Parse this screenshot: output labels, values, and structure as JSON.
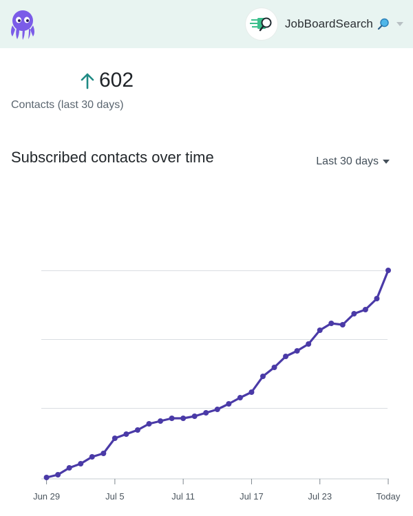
{
  "header": {
    "account_name": "JobBoardSearch",
    "accent": "#e8f4f1"
  },
  "stat": {
    "value": "602",
    "label": "Contacts (last 30 days)",
    "arrow_color": "#1f8a84"
  },
  "chart_section": {
    "title": "Subscribed contacts over time",
    "range_label": "Last 30 days"
  },
  "chart_data": {
    "type": "line",
    "title": "Subscribed contacts over time",
    "xlabel": "",
    "ylabel": "",
    "x_ticks": [
      "Jun 29",
      "Jul 5",
      "Jul 11",
      "Jul 17",
      "Jul 23",
      "Today"
    ],
    "x": [
      "Jun 29",
      "Jun 30",
      "Jul 1",
      "Jul 2",
      "Jul 3",
      "Jul 4",
      "Jul 5",
      "Jul 6",
      "Jul 7",
      "Jul 8",
      "Jul 9",
      "Jul 10",
      "Jul 11",
      "Jul 12",
      "Jul 13",
      "Jul 14",
      "Jul 15",
      "Jul 16",
      "Jul 17",
      "Jul 18",
      "Jul 19",
      "Jul 20",
      "Jul 21",
      "Jul 22",
      "Jul 23",
      "Jul 24",
      "Jul 25",
      "Jul 26",
      "Jul 27",
      "Jul 28",
      "Today"
    ],
    "series": [
      {
        "color": "#4a3aa7",
        "values": [
          0,
          4,
          14,
          20,
          30,
          35,
          57,
          63,
          69,
          78,
          82,
          86,
          86,
          89,
          94,
          99,
          107,
          116,
          124,
          147,
          160,
          176,
          184,
          194,
          214,
          224,
          222,
          238,
          244,
          260,
          301
        ]
      }
    ],
    "ylim": [
      0,
      390
    ],
    "grid": true,
    "legend": "none"
  }
}
